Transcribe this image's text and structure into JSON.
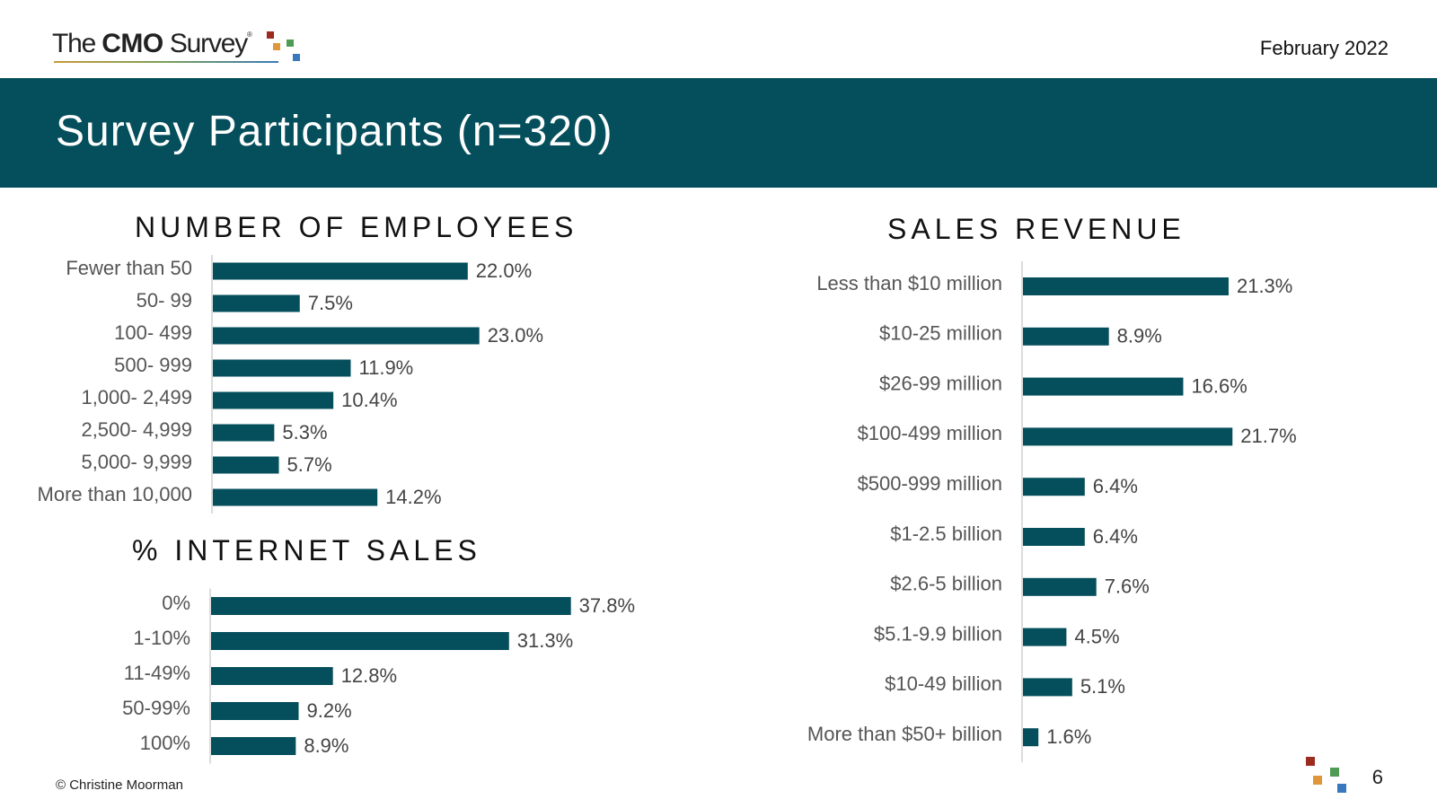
{
  "header": {
    "logo_pre": "The ",
    "logo_bold": "CMO",
    "logo_post": " Survey",
    "logo_reg": "®",
    "date": "February 2022",
    "title": "Survey Participants (n=320)"
  },
  "colors": {
    "banner": "#054f5c",
    "bar": "#054f5c",
    "accent_red": "#9b2a1f",
    "accent_orange": "#e0973a",
    "accent_green": "#4f9a55",
    "accent_blue": "#3a78bd"
  },
  "chart_data": [
    {
      "type": "bar",
      "orientation": "horizontal",
      "title": "NUMBER OF EMPLOYEES",
      "categories": [
        "Fewer than 50",
        "50- 99",
        "100- 499",
        "500- 999",
        "1,000- 2,499",
        "2,500- 4,999",
        "5,000- 9,999",
        "More than 10,000"
      ],
      "values": [
        22.0,
        7.5,
        23.0,
        11.9,
        10.4,
        5.3,
        5.7,
        14.2
      ],
      "value_labels": [
        "22.0%",
        "7.5%",
        "23.0%",
        "11.9%",
        "10.4%",
        "5.3%",
        "5.7%",
        "14.2%"
      ],
      "unit": "%"
    },
    {
      "type": "bar",
      "orientation": "horizontal",
      "title": "% INTERNET SALES",
      "categories": [
        "0%",
        "1-10%",
        "11-49%",
        "50-99%",
        "100%"
      ],
      "values": [
        37.8,
        31.3,
        12.8,
        9.2,
        8.9
      ],
      "value_labels": [
        "37.8%",
        "31.3%",
        "12.8%",
        "9.2%",
        "8.9%"
      ],
      "unit": "%"
    },
    {
      "type": "bar",
      "orientation": "horizontal",
      "title": "SALES REVENUE",
      "categories": [
        "Less than $10 million",
        "$10-25 million",
        "$26-99 million",
        "$100-499 million",
        "$500-999 million",
        "$1-2.5 billion",
        "$2.6-5 billion",
        "$5.1-9.9 billion",
        "$10-49 billion",
        "More than $50+ billion"
      ],
      "values": [
        21.3,
        8.9,
        16.6,
        21.7,
        6.4,
        6.4,
        7.6,
        4.5,
        5.1,
        1.6
      ],
      "value_labels": [
        "21.3%",
        "8.9%",
        "16.6%",
        "21.7%",
        "6.4%",
        "6.4%",
        "7.6%",
        "4.5%",
        "5.1%",
        "1.6%"
      ],
      "unit": "%"
    }
  ],
  "footer": {
    "copyright": "© Christine Moorman",
    "page_number": "6"
  }
}
